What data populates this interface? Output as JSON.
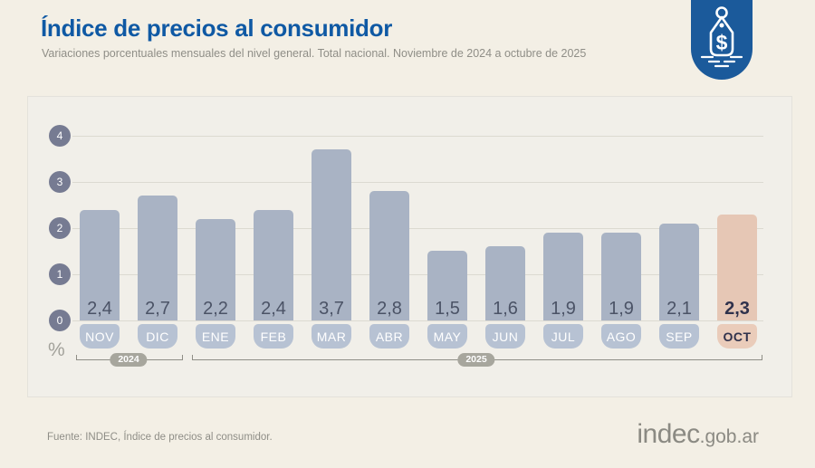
{
  "header": {
    "title": "Índice de precios al consumidor",
    "subtitle": "Variaciones porcentuales mensuales del nivel general. Total nacional. Noviembre de 2024 a octubre de 2025"
  },
  "badge": {
    "icon": "price-tag-icon",
    "symbol": "$"
  },
  "chart_data": {
    "type": "bar",
    "categories": [
      "NOV",
      "DIC",
      "ENE",
      "FEB",
      "MAR",
      "ABR",
      "MAY",
      "JUN",
      "JUL",
      "AGO",
      "SEP",
      "OCT"
    ],
    "values": [
      2.4,
      2.7,
      2.2,
      2.4,
      3.7,
      2.8,
      1.5,
      1.6,
      1.9,
      1.9,
      2.1,
      2.3
    ],
    "value_labels": [
      "2,4",
      "2,7",
      "2,2",
      "2,4",
      "3,7",
      "2,8",
      "1,5",
      "1,6",
      "1,9",
      "1,9",
      "2,1",
      "2,3"
    ],
    "highlight_index": 11,
    "ylabel": "%",
    "yticks": [
      0,
      1,
      2,
      3,
      4
    ],
    "ylim": [
      0,
      4
    ],
    "grid": true,
    "legend": "none",
    "year_groups": [
      {
        "label": "2024",
        "from": 0,
        "to": 1
      },
      {
        "label": "2025",
        "from": 2,
        "to": 11
      }
    ]
  },
  "colors": {
    "background": "#f3efe5",
    "panel": "#f1efe9",
    "title_blue": "#0f59a4",
    "badge_blue": "#1b5a9b",
    "bar": "#a9b3c4",
    "bar_chip": "#b7c2d3",
    "highlight_bar": "#e6c7b5",
    "highlight_chip": "#eaccba",
    "value_text": "#4b5366",
    "highlight_text": "#30324c",
    "chip_text": "#ffffff",
    "pin": "#767b92",
    "gridline": "#dcdad1",
    "year_pill": "#a7a69d",
    "bracket_line": "#8f8e86",
    "muted_text": "#8f8e87"
  },
  "footer": {
    "source": "Fuente: INDEC, Índice de precios al consumidor.",
    "logo_main": "indec",
    "logo_suffix": ".gob.ar"
  }
}
